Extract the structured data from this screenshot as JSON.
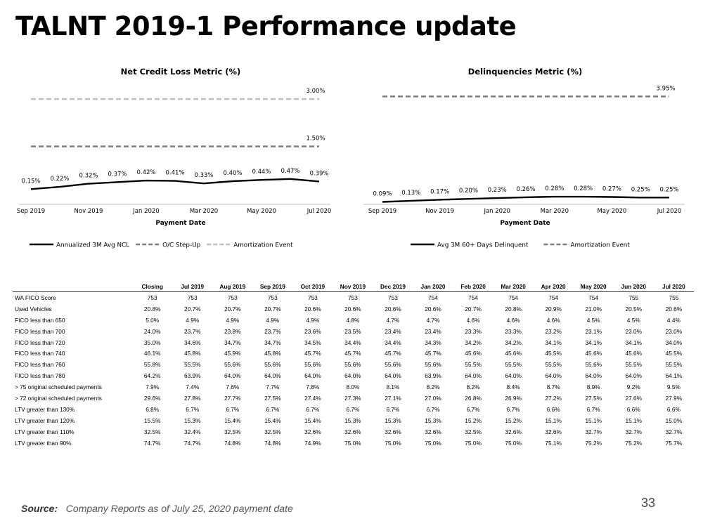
{
  "page": {
    "title": "TALNT 2019-1 Performance update",
    "source_label": "Source:",
    "source_text": "Company Reports as of July 25, 2020 payment date",
    "page_number": "33"
  },
  "chart_data": [
    {
      "type": "line",
      "title": "Net Credit Loss Metric (%)",
      "xlabel": "Payment Date",
      "ylabel": "",
      "categories": [
        "Sep 2019",
        "Oct 2019",
        "Nov 2019",
        "Dec 2019",
        "Jan 2020",
        "Feb 2020",
        "Mar 2020",
        "Apr 2020",
        "May 2020",
        "Jun 2020",
        "Jul 2020"
      ],
      "x_tick_labels": [
        "Sep 2019",
        "Nov 2019",
        "Jan 2020",
        "Mar 2020",
        "May 2020",
        "Jul 2020"
      ],
      "ylim": [
        0,
        3.6
      ],
      "series": [
        {
          "name": "Annualized 3M Avg NCL",
          "style": "solid",
          "color": "#000000",
          "values": [
            0.15,
            0.22,
            0.32,
            0.37,
            0.42,
            0.41,
            0.33,
            0.4,
            0.44,
            0.47,
            0.39
          ],
          "labels": [
            "0.15%",
            "0.22%",
            "0.32%",
            "0.37%",
            "0.42%",
            "0.41%",
            "0.33%",
            "0.40%",
            "0.44%",
            "0.47%",
            "0.39%"
          ]
        },
        {
          "name": "O/C Step-Up",
          "style": "dashed",
          "color": "#7f7f7f",
          "values": [
            1.5,
            1.5,
            1.5,
            1.5,
            1.5,
            1.5,
            1.5,
            1.5,
            1.5,
            1.5,
            1.5
          ],
          "end_label": "1.50%"
        },
        {
          "name": "Amortization Event",
          "style": "dashed",
          "color": "#bfbfbf",
          "values": [
            3.0,
            3.0,
            3.0,
            3.0,
            3.0,
            3.0,
            3.0,
            3.0,
            3.0,
            3.0,
            3.0
          ],
          "end_label": "3.00%"
        }
      ],
      "grid": false,
      "legend": "bottom"
    },
    {
      "type": "line",
      "title": "Delinquencies Metric (%)",
      "xlabel": "Payment Date",
      "ylabel": "",
      "categories": [
        "Sep 2019",
        "Oct 2019",
        "Nov 2019",
        "Dec 2019",
        "Jan 2020",
        "Feb 2020",
        "Mar 2020",
        "Apr 2020",
        "May 2020",
        "Jun 2020",
        "Jul 2020"
      ],
      "x_tick_labels": [
        "Sep 2019",
        "Nov 2019",
        "Jan 2020",
        "Mar 2020",
        "May 2020",
        "Jul 2020"
      ],
      "ylim": [
        0,
        4.6
      ],
      "series": [
        {
          "name": "Avg 3M 60+ Days Delinquent",
          "style": "solid",
          "color": "#000000",
          "values": [
            0.09,
            0.13,
            0.17,
            0.2,
            0.23,
            0.26,
            0.28,
            0.28,
            0.27,
            0.25,
            0.25
          ],
          "labels": [
            "0.09%",
            "0.13%",
            "0.17%",
            "0.20%",
            "0.23%",
            "0.26%",
            "0.28%",
            "0.28%",
            "0.27%",
            "0.25%",
            "0.25%"
          ]
        },
        {
          "name": "Amortization Event",
          "style": "dashed",
          "color": "#7f7f7f",
          "values": [
            3.95,
            3.95,
            3.95,
            3.95,
            3.95,
            3.95,
            3.95,
            3.95,
            3.95,
            3.95,
            3.95
          ],
          "end_label": "3.95%"
        }
      ],
      "grid": false,
      "legend": "bottom"
    }
  ],
  "table": {
    "headers": [
      "",
      "Closing",
      "Jul 2019",
      "Aug 2019",
      "Sep 2019",
      "Oct 2019",
      "Nov 2019",
      "Dec 2019",
      "Jan 2020",
      "Feb 2020",
      "Mar 2020",
      "Apr 2020",
      "May 2020",
      "Jun 2020",
      "Jul 2020"
    ],
    "rows": [
      [
        "WA FICO Score",
        "753",
        "753",
        "753",
        "753",
        "753",
        "753",
        "753",
        "754",
        "754",
        "754",
        "754",
        "754",
        "755",
        "755"
      ],
      [
        "Used Vehicles",
        "20.8%",
        "20.7%",
        "20.7%",
        "20.7%",
        "20.6%",
        "20.6%",
        "20.6%",
        "20.6%",
        "20.7%",
        "20.8%",
        "20.9%",
        "21.0%",
        "20.5%",
        "20.6%"
      ],
      [
        "FICO less than 650",
        "5.0%",
        "4.9%",
        "4.9%",
        "4.9%",
        "4.9%",
        "4.8%",
        "4.7%",
        "4.7%",
        "4.6%",
        "4.6%",
        "4.6%",
        "4.5%",
        "4.5%",
        "4.4%"
      ],
      [
        "FICO less than 700",
        "24.0%",
        "23.7%",
        "23.8%",
        "23.7%",
        "23.6%",
        "23.5%",
        "23.4%",
        "23.4%",
        "23.3%",
        "23.3%",
        "23.2%",
        "23.1%",
        "23.0%",
        "23.0%"
      ],
      [
        "FICO less than 720",
        "35.0%",
        "34.6%",
        "34.7%",
        "34.7%",
        "34.5%",
        "34.4%",
        "34.4%",
        "34.3%",
        "34.2%",
        "34.2%",
        "34.1%",
        "34.1%",
        "34.1%",
        "34.0%"
      ],
      [
        "FICO less than 740",
        "46.1%",
        "45.8%",
        "45.9%",
        "45.8%",
        "45.7%",
        "45.7%",
        "45.7%",
        "45.7%",
        "45.6%",
        "45.6%",
        "45.5%",
        "45.6%",
        "45.6%",
        "45.5%"
      ],
      [
        "FICO less than 760",
        "55.8%",
        "55.5%",
        "55.6%",
        "55.6%",
        "55.6%",
        "55.6%",
        "55.6%",
        "55.6%",
        "55.5%",
        "55.5%",
        "55.5%",
        "55.6%",
        "55.5%",
        "55.5%"
      ],
      [
        "FICO less than 780",
        "64.2%",
        "63.9%",
        "64.0%",
        "64.0%",
        "64.0%",
        "64.0%",
        "64.0%",
        "63.9%",
        "64.0%",
        "64.0%",
        "64.0%",
        "64.0%",
        "64.0%",
        "64.1%"
      ],
      [
        "> 75 original scheduled payments",
        "7.9%",
        "7.4%",
        "7.6%",
        "7.7%",
        "7.8%",
        "8.0%",
        "8.1%",
        "8.2%",
        "8.2%",
        "8.4%",
        "8.7%",
        "8.9%",
        "9.2%",
        "9.5%"
      ],
      [
        "> 72 original scheduled payments",
        "29.6%",
        "27.8%",
        "27.7%",
        "27.5%",
        "27.4%",
        "27.3%",
        "27.1%",
        "27.0%",
        "26.8%",
        "26.9%",
        "27.2%",
        "27.5%",
        "27.6%",
        "27.9%"
      ],
      [
        "LTV greater than 130%",
        "6.8%",
        "6.7%",
        "6.7%",
        "6.7%",
        "6.7%",
        "6.7%",
        "6.7%",
        "6.7%",
        "6.7%",
        "6.7%",
        "6.6%",
        "6.7%",
        "6.6%",
        "6.6%"
      ],
      [
        "LTV greater than 120%",
        "15.5%",
        "15.3%",
        "15.4%",
        "15.4%",
        "15.4%",
        "15.3%",
        "15.3%",
        "15.3%",
        "15.2%",
        "15.2%",
        "15.1%",
        "15.1%",
        "15.1%",
        "15.0%"
      ],
      [
        "LTV greater than 110%",
        "32.5%",
        "32.4%",
        "32.5%",
        "32.5%",
        "32.6%",
        "32.6%",
        "32.6%",
        "32.6%",
        "32.5%",
        "32.6%",
        "32.6%",
        "32.7%",
        "32.7%",
        "32.7%"
      ],
      [
        "LTV greater than 90%",
        "74.7%",
        "74.7%",
        "74.8%",
        "74.8%",
        "74.9%",
        "75.0%",
        "75.0%",
        "75.0%",
        "75.0%",
        "75.0%",
        "75.1%",
        "75.2%",
        "75.2%",
        "75.7%"
      ]
    ]
  }
}
